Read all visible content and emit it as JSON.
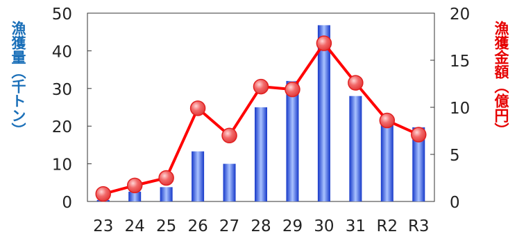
{
  "chart_data": {
    "type": "bar+line",
    "categories": [
      "23",
      "24",
      "25",
      "26",
      "27",
      "28",
      "29",
      "30",
      "31",
      "R2",
      "R3"
    ],
    "series": [
      {
        "name": "漁獲量",
        "type": "bar",
        "axis": "left",
        "values": [
          0.4,
          2.6,
          3.8,
          13.3,
          10.0,
          25.0,
          32.0,
          46.8,
          28.0,
          22.5,
          19.7
        ],
        "color": "#1f4fd8"
      },
      {
        "name": "漁獲金額",
        "type": "line",
        "axis": "right",
        "values": [
          0.8,
          1.7,
          2.5,
          9.9,
          7.0,
          12.2,
          11.9,
          16.8,
          12.6,
          8.6,
          7.1
        ],
        "color": "#ff0000"
      }
    ],
    "ylabel_left": "漁獲量（千トン）",
    "ylabel_right": "漁獲金額（億円）",
    "ylim_left": [
      0,
      50
    ],
    "ylim_right": [
      0,
      20
    ],
    "yticks_left": [
      "0",
      "10",
      "20",
      "30",
      "40",
      "50"
    ],
    "yticks_right": [
      "0",
      "5",
      "10",
      "15",
      "20"
    ],
    "grid": false,
    "legend": "none"
  }
}
